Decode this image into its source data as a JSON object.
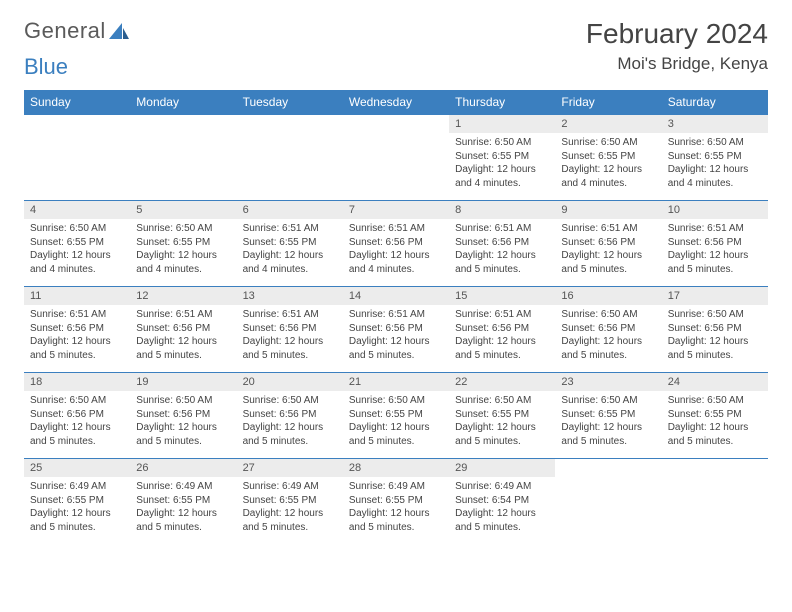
{
  "logo": {
    "word1": "General",
    "word2": "Blue"
  },
  "title": "February 2024",
  "location": "Moi's Bridge, Kenya",
  "colors": {
    "brand_blue": "#3b7fbf",
    "row_shade": "#ececec",
    "text": "#444444",
    "bg": "#ffffff"
  },
  "days_of_week": [
    "Sunday",
    "Monday",
    "Tuesday",
    "Wednesday",
    "Thursday",
    "Friday",
    "Saturday"
  ],
  "weeks": [
    [
      {
        "n": "",
        "empty": true
      },
      {
        "n": "",
        "empty": true
      },
      {
        "n": "",
        "empty": true
      },
      {
        "n": "",
        "empty": true
      },
      {
        "n": "1",
        "sunrise": "6:50 AM",
        "sunset": "6:55 PM",
        "daylight": "12 hours and 4 minutes."
      },
      {
        "n": "2",
        "sunrise": "6:50 AM",
        "sunset": "6:55 PM",
        "daylight": "12 hours and 4 minutes."
      },
      {
        "n": "3",
        "sunrise": "6:50 AM",
        "sunset": "6:55 PM",
        "daylight": "12 hours and 4 minutes."
      }
    ],
    [
      {
        "n": "4",
        "sunrise": "6:50 AM",
        "sunset": "6:55 PM",
        "daylight": "12 hours and 4 minutes."
      },
      {
        "n": "5",
        "sunrise": "6:50 AM",
        "sunset": "6:55 PM",
        "daylight": "12 hours and 4 minutes."
      },
      {
        "n": "6",
        "sunrise": "6:51 AM",
        "sunset": "6:55 PM",
        "daylight": "12 hours and 4 minutes."
      },
      {
        "n": "7",
        "sunrise": "6:51 AM",
        "sunset": "6:56 PM",
        "daylight": "12 hours and 4 minutes."
      },
      {
        "n": "8",
        "sunrise": "6:51 AM",
        "sunset": "6:56 PM",
        "daylight": "12 hours and 5 minutes."
      },
      {
        "n": "9",
        "sunrise": "6:51 AM",
        "sunset": "6:56 PM",
        "daylight": "12 hours and 5 minutes."
      },
      {
        "n": "10",
        "sunrise": "6:51 AM",
        "sunset": "6:56 PM",
        "daylight": "12 hours and 5 minutes."
      }
    ],
    [
      {
        "n": "11",
        "sunrise": "6:51 AM",
        "sunset": "6:56 PM",
        "daylight": "12 hours and 5 minutes."
      },
      {
        "n": "12",
        "sunrise": "6:51 AM",
        "sunset": "6:56 PM",
        "daylight": "12 hours and 5 minutes."
      },
      {
        "n": "13",
        "sunrise": "6:51 AM",
        "sunset": "6:56 PM",
        "daylight": "12 hours and 5 minutes."
      },
      {
        "n": "14",
        "sunrise": "6:51 AM",
        "sunset": "6:56 PM",
        "daylight": "12 hours and 5 minutes."
      },
      {
        "n": "15",
        "sunrise": "6:51 AM",
        "sunset": "6:56 PM",
        "daylight": "12 hours and 5 minutes."
      },
      {
        "n": "16",
        "sunrise": "6:50 AM",
        "sunset": "6:56 PM",
        "daylight": "12 hours and 5 minutes."
      },
      {
        "n": "17",
        "sunrise": "6:50 AM",
        "sunset": "6:56 PM",
        "daylight": "12 hours and 5 minutes."
      }
    ],
    [
      {
        "n": "18",
        "sunrise": "6:50 AM",
        "sunset": "6:56 PM",
        "daylight": "12 hours and 5 minutes."
      },
      {
        "n": "19",
        "sunrise": "6:50 AM",
        "sunset": "6:56 PM",
        "daylight": "12 hours and 5 minutes."
      },
      {
        "n": "20",
        "sunrise": "6:50 AM",
        "sunset": "6:56 PM",
        "daylight": "12 hours and 5 minutes."
      },
      {
        "n": "21",
        "sunrise": "6:50 AM",
        "sunset": "6:55 PM",
        "daylight": "12 hours and 5 minutes."
      },
      {
        "n": "22",
        "sunrise": "6:50 AM",
        "sunset": "6:55 PM",
        "daylight": "12 hours and 5 minutes."
      },
      {
        "n": "23",
        "sunrise": "6:50 AM",
        "sunset": "6:55 PM",
        "daylight": "12 hours and 5 minutes."
      },
      {
        "n": "24",
        "sunrise": "6:50 AM",
        "sunset": "6:55 PM",
        "daylight": "12 hours and 5 minutes."
      }
    ],
    [
      {
        "n": "25",
        "sunrise": "6:49 AM",
        "sunset": "6:55 PM",
        "daylight": "12 hours and 5 minutes."
      },
      {
        "n": "26",
        "sunrise": "6:49 AM",
        "sunset": "6:55 PM",
        "daylight": "12 hours and 5 minutes."
      },
      {
        "n": "27",
        "sunrise": "6:49 AM",
        "sunset": "6:55 PM",
        "daylight": "12 hours and 5 minutes."
      },
      {
        "n": "28",
        "sunrise": "6:49 AM",
        "sunset": "6:55 PM",
        "daylight": "12 hours and 5 minutes."
      },
      {
        "n": "29",
        "sunrise": "6:49 AM",
        "sunset": "6:54 PM",
        "daylight": "12 hours and 5 minutes."
      },
      {
        "n": "",
        "empty": true
      },
      {
        "n": "",
        "empty": true
      }
    ]
  ],
  "labels": {
    "sunrise_prefix": "Sunrise: ",
    "sunset_prefix": "Sunset: ",
    "daylight_prefix": "Daylight: "
  }
}
